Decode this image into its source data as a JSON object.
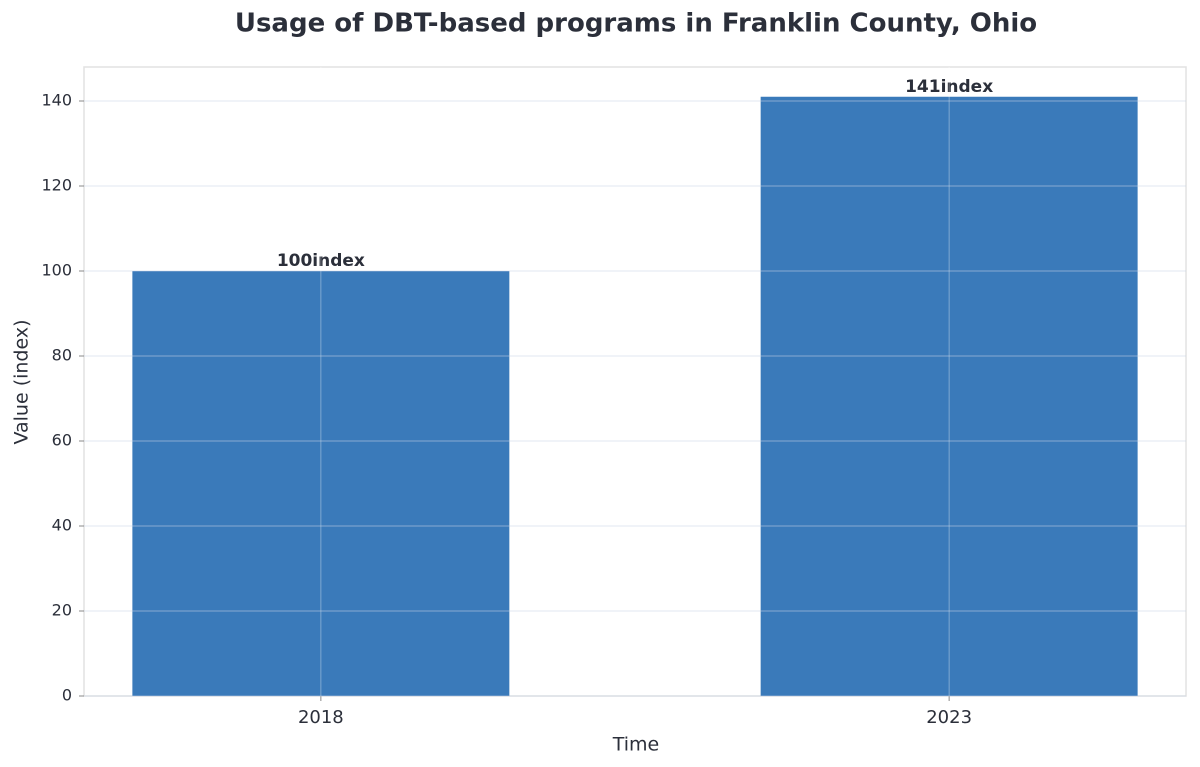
{
  "chart_data": {
    "type": "bar",
    "title": "Usage of DBT-based programs in Franklin County, Ohio",
    "x_label": "Time",
    "y_label": "Value (index)",
    "categories": [
      "2018",
      "2023"
    ],
    "values": [
      100,
      141
    ],
    "value_labels": [
      "100index",
      "141index"
    ],
    "color": "#3a7aba",
    "ylim": [
      0,
      148
    ],
    "yticks": [
      0,
      20,
      40,
      60,
      80,
      100,
      120,
      140
    ],
    "grid": true
  }
}
